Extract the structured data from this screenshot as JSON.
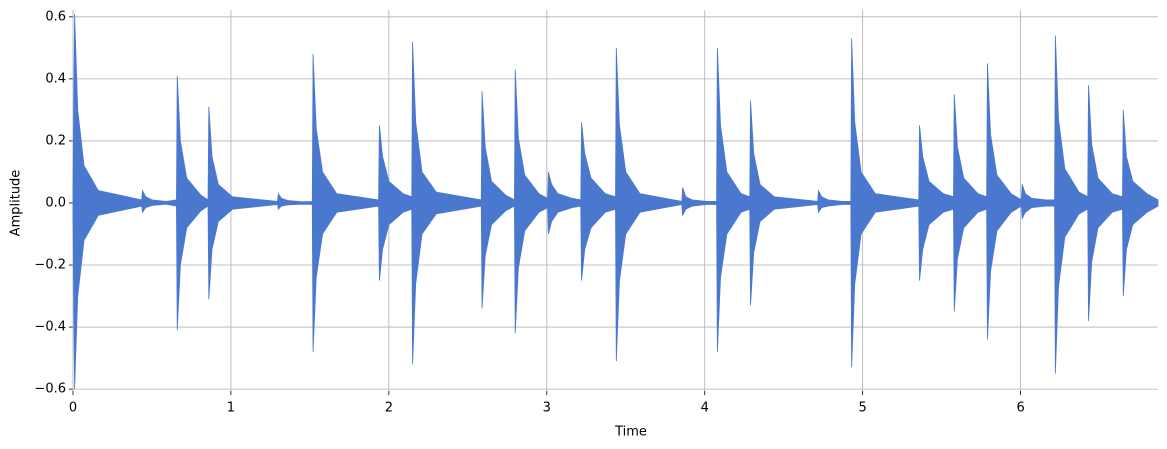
{
  "chart_data": {
    "type": "waveform",
    "xlabel": "Time",
    "ylabel": "Amplitude",
    "xlim": [
      0,
      6.87
    ],
    "ylim": [
      -0.606,
      0.622
    ],
    "xticks": [
      0,
      1,
      2,
      3,
      4,
      5,
      6
    ],
    "yticks": [
      {
        "value": -0.6,
        "label": "−0.6"
      },
      {
        "value": -0.4,
        "label": "−0.4"
      },
      {
        "value": -0.2,
        "label": "−0.2"
      },
      {
        "value": 0,
        "label": "0.0"
      },
      0.2,
      0.4,
      0.6
    ],
    "grid": true,
    "x": [
      0,
      0.01,
      0.03,
      0.07,
      0.16,
      0.435,
      0.44,
      0.46,
      0.5,
      0.59,
      0.655,
      0.66,
      0.68,
      0.72,
      0.81,
      0.855,
      0.86,
      0.88,
      0.92,
      1.01,
      1.295,
      1.3,
      1.32,
      1.36,
      1.45,
      1.515,
      1.52,
      1.54,
      1.58,
      1.67,
      1.935,
      1.94,
      1.96,
      2.0,
      2.09,
      2.145,
      2.15,
      2.17,
      2.21,
      2.3,
      2.585,
      2.59,
      2.61,
      2.65,
      2.74,
      2.795,
      2.8,
      2.82,
      2.86,
      2.95,
      3.005,
      3.01,
      3.03,
      3.07,
      3.16,
      3.215,
      3.22,
      3.24,
      3.28,
      3.37,
      3.435,
      3.44,
      3.46,
      3.5,
      3.59,
      3.855,
      3.86,
      3.88,
      3.92,
      4.01,
      4.075,
      4.08,
      4.1,
      4.14,
      4.23,
      4.285,
      4.29,
      4.31,
      4.35,
      4.44,
      4.715,
      4.72,
      4.74,
      4.78,
      4.87,
      4.925,
      4.93,
      4.95,
      4.99,
      5.08,
      5.355,
      5.36,
      5.38,
      5.42,
      5.51,
      5.575,
      5.58,
      5.6,
      5.64,
      5.73,
      5.785,
      5.79,
      5.81,
      5.85,
      5.94,
      6.005,
      6.01,
      6.03,
      6.07,
      6.16,
      6.215,
      6.22,
      6.24,
      6.28,
      6.37,
      6.425,
      6.43,
      6.45,
      6.49,
      6.58,
      6.645,
      6.65,
      6.67,
      6.71,
      6.8,
      6.87
    ],
    "series": [
      {
        "color": "#4a78cf",
        "values": [
          0.05,
          0.61,
          0.3,
          0.12,
          0.04,
          0.01,
          0.04,
          0.02,
          0.01,
          0.005,
          0.01,
          0.41,
          0.2,
          0.08,
          0.025,
          0.01,
          0.31,
          0.15,
          0.06,
          0.02,
          0.005,
          0.03,
          0.015,
          0.008,
          0.004,
          0.005,
          0.48,
          0.24,
          0.1,
          0.03,
          0.01,
          0.25,
          0.15,
          0.07,
          0.03,
          0.02,
          0.52,
          0.26,
          0.1,
          0.035,
          0.01,
          0.36,
          0.18,
          0.07,
          0.025,
          0.01,
          0.43,
          0.21,
          0.09,
          0.03,
          0.015,
          0.1,
          0.06,
          0.03,
          0.015,
          0.01,
          0.26,
          0.16,
          0.08,
          0.03,
          0.02,
          0.5,
          0.25,
          0.1,
          0.03,
          0.005,
          0.05,
          0.02,
          0.01,
          0.005,
          0.005,
          0.5,
          0.25,
          0.1,
          0.03,
          0.02,
          0.33,
          0.16,
          0.06,
          0.02,
          0.005,
          0.04,
          0.02,
          0.01,
          0.005,
          0.005,
          0.53,
          0.26,
          0.1,
          0.03,
          0.01,
          0.25,
          0.15,
          0.07,
          0.03,
          0.02,
          0.35,
          0.18,
          0.08,
          0.03,
          0.02,
          0.45,
          0.22,
          0.09,
          0.03,
          0.01,
          0.06,
          0.03,
          0.015,
          0.01,
          0.01,
          0.54,
          0.27,
          0.11,
          0.035,
          0.02,
          0.38,
          0.19,
          0.08,
          0.03,
          0.02,
          0.3,
          0.15,
          0.07,
          0.03,
          0.01
        ]
      },
      {
        "color": "#4a78cf",
        "values": [
          -0.05,
          -0.6,
          -0.3,
          -0.12,
          -0.04,
          -0.01,
          -0.03,
          -0.015,
          -0.008,
          -0.004,
          -0.01,
          -0.41,
          -0.2,
          -0.08,
          -0.025,
          -0.01,
          -0.31,
          -0.15,
          -0.06,
          -0.02,
          -0.005,
          -0.02,
          -0.01,
          -0.006,
          -0.004,
          -0.005,
          -0.48,
          -0.24,
          -0.1,
          -0.03,
          -0.01,
          -0.25,
          -0.15,
          -0.07,
          -0.03,
          -0.02,
          -0.52,
          -0.26,
          -0.1,
          -0.035,
          -0.01,
          -0.34,
          -0.17,
          -0.07,
          -0.025,
          -0.01,
          -0.42,
          -0.21,
          -0.09,
          -0.03,
          -0.015,
          -0.1,
          -0.06,
          -0.03,
          -0.015,
          -0.01,
          -0.25,
          -0.15,
          -0.08,
          -0.03,
          -0.02,
          -0.51,
          -0.25,
          -0.1,
          -0.03,
          -0.005,
          -0.04,
          -0.02,
          -0.01,
          -0.005,
          -0.005,
          -0.48,
          -0.24,
          -0.1,
          -0.03,
          -0.02,
          -0.33,
          -0.16,
          -0.06,
          -0.02,
          -0.005,
          -0.03,
          -0.015,
          -0.01,
          -0.005,
          -0.005,
          -0.53,
          -0.26,
          -0.1,
          -0.03,
          -0.01,
          -0.25,
          -0.15,
          -0.07,
          -0.03,
          -0.02,
          -0.35,
          -0.18,
          -0.08,
          -0.03,
          -0.02,
          -0.44,
          -0.22,
          -0.09,
          -0.03,
          -0.01,
          -0.05,
          -0.03,
          -0.015,
          -0.01,
          -0.01,
          -0.55,
          -0.27,
          -0.11,
          -0.035,
          -0.02,
          -0.38,
          -0.19,
          -0.08,
          -0.03,
          -0.02,
          -0.3,
          -0.15,
          -0.07,
          -0.03,
          -0.01
        ]
      }
    ]
  }
}
